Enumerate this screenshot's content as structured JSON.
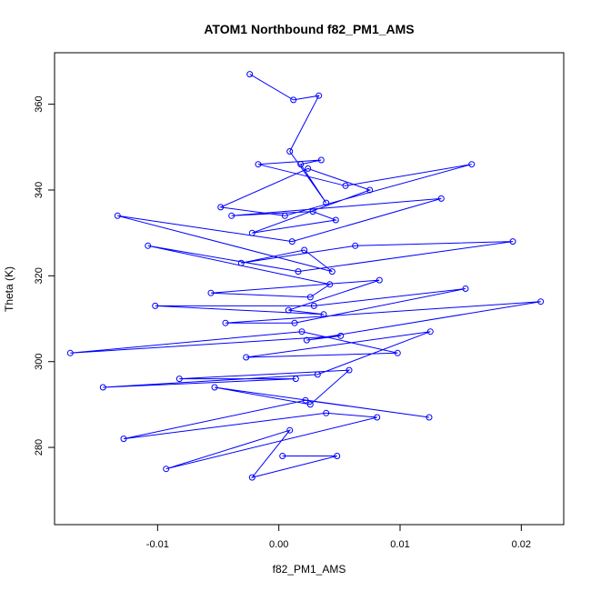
{
  "chart_data": {
    "type": "scatter",
    "style": "points-connected-by-lines",
    "title": "ATOM1 Northbound f82_PM1_AMS",
    "xlabel": "f82_PM1_AMS",
    "ylabel": "Theta (K)",
    "xlim": [
      -0.0185,
      0.0235
    ],
    "ylim": [
      262,
      372
    ],
    "xticks": [
      -0.01,
      0.0,
      0.01,
      0.02
    ],
    "xtick_labels": [
      "-0.01",
      "0.00",
      "0.01",
      "0.02"
    ],
    "yticks": [
      280,
      300,
      320,
      340,
      360
    ],
    "ytick_labels": [
      "280",
      "300",
      "320",
      "340",
      "360"
    ],
    "grid": false,
    "legend": "none",
    "color": "#0000ff",
    "series": [
      {
        "x": [
          -0.0024,
          0.0012,
          0.0033,
          0.0009,
          0.0039,
          0.0018,
          0.0035,
          -0.0017,
          0.0055,
          0.0159,
          0.0005,
          -0.0048,
          0.0024,
          0.0075,
          -0.0022,
          0.0047,
          0.0028,
          -0.0039,
          0.0134,
          0.0011,
          -0.0133,
          0.0044,
          0.0021,
          -0.0031,
          0.0063,
          0.0193,
          0.0016,
          -0.0108,
          0.0042,
          0.0026,
          -0.0056,
          0.0083,
          0.0008,
          0.0037,
          -0.0102,
          0.0029,
          0.0154,
          0.0013,
          -0.0044,
          0.0216,
          0.0023,
          0.0051,
          -0.0172,
          0.0019,
          0.0098,
          -0.0027,
          0.0125,
          0.0032,
          -0.0145,
          0.0014,
          -0.0082,
          0.0058,
          0.0026,
          -0.0053,
          0.0124,
          0.0022,
          -0.0128,
          0.0039,
          0.0081,
          -0.0093,
          0.0009,
          -0.0022,
          0.0048,
          0.0003
        ],
        "y": [
          367,
          361,
          362,
          349,
          337,
          346,
          347,
          346,
          341,
          346,
          334,
          336,
          345,
          340,
          330,
          333,
          335,
          334,
          338,
          328,
          334,
          321,
          326,
          323,
          327,
          328,
          321,
          327,
          318,
          315,
          316,
          319,
          312,
          311,
          313,
          313,
          317,
          309,
          309,
          314,
          305,
          306,
          302,
          307,
          302,
          301,
          307,
          297,
          294,
          296,
          296,
          298,
          290,
          294,
          287,
          291,
          282,
          288,
          287,
          275,
          284,
          273,
          278,
          278
        ]
      }
    ]
  }
}
